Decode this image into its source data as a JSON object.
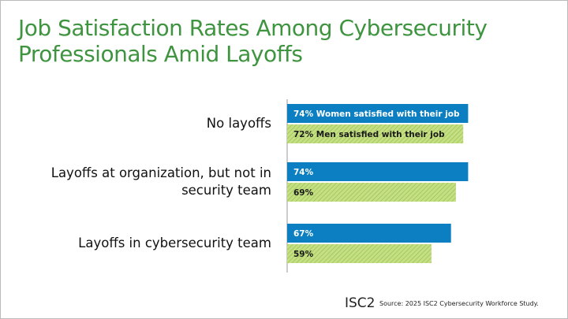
{
  "chart_data": {
    "type": "bar",
    "orientation": "horizontal",
    "title": "Job Satisfaction Rates Among Cybersecurity Professionals Amid Layoffs",
    "categories": [
      "No layoffs",
      "Layoffs at organization, but not in security team",
      "Layoffs in cybersecurity team"
    ],
    "series": [
      {
        "color": "#0b7fc1",
        "values": [
          74,
          74,
          67
        ],
        "value_labels": [
          "74% Women satisfied with their job",
          "74%",
          "67%"
        ]
      },
      {
        "color": "#b3d46a",
        "values": [
          72,
          69,
          59
        ],
        "value_labels": [
          "72% Men satisfied with their job",
          "69%",
          "59%"
        ]
      }
    ],
    "xlim": [
      0,
      100
    ],
    "logo": "ISC2",
    "source": "Source: 2025 ISC2 Cybersecurity Workforce Study."
  }
}
